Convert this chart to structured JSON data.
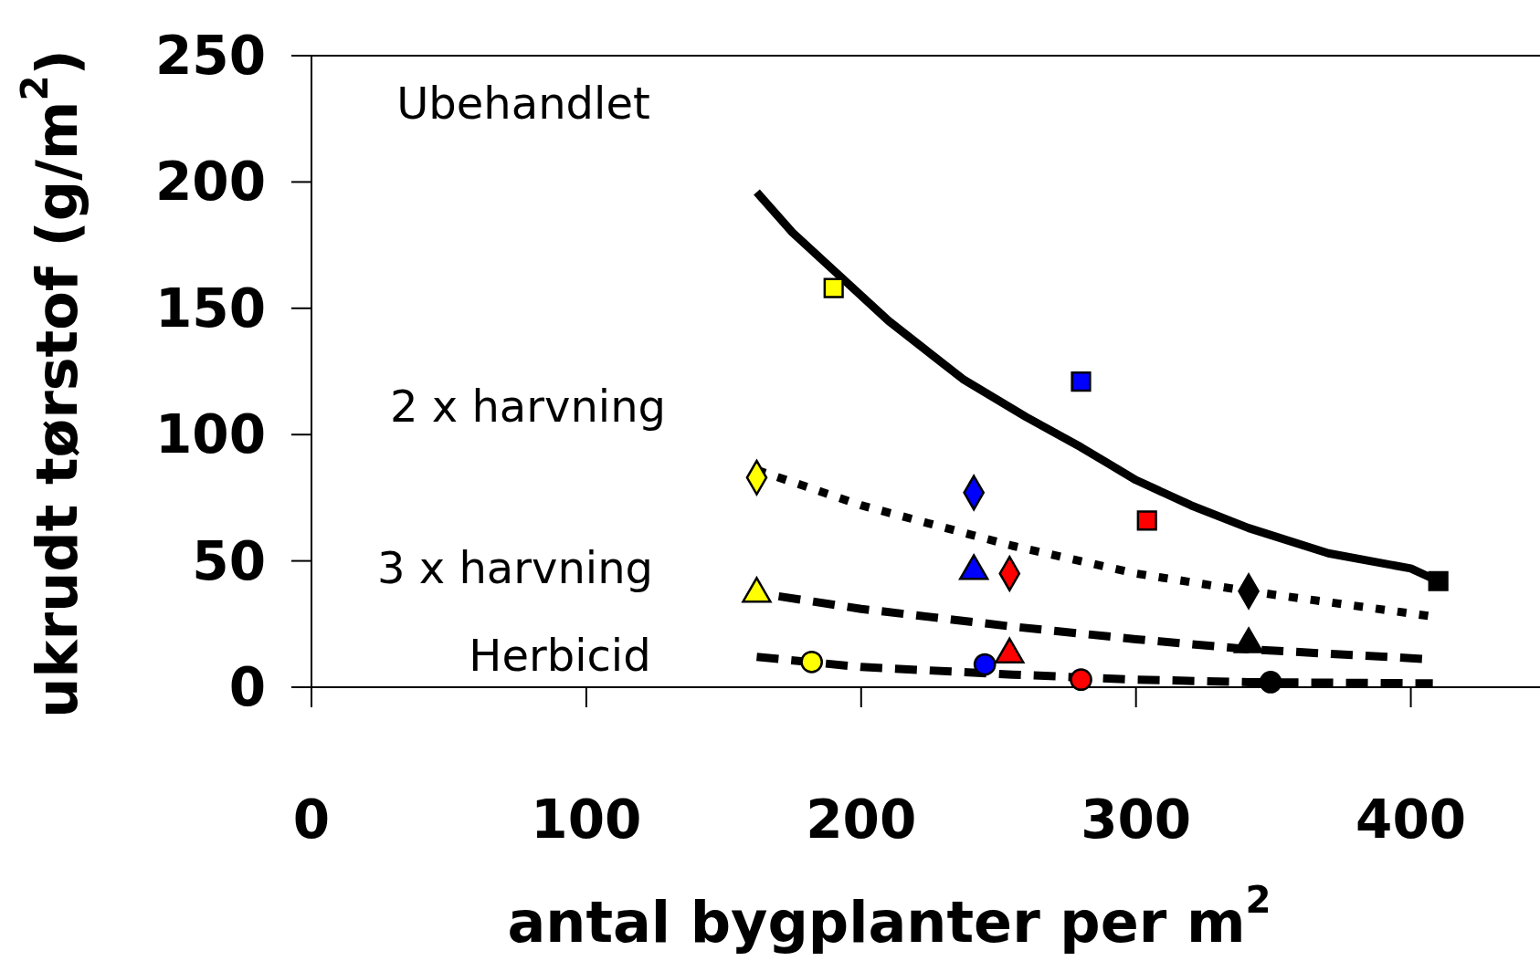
{
  "chart_data": {
    "type": "scatter",
    "xlabel": "antal bygplanter per m$^{2}$",
    "ylabel": "ukrudt tørstof (g/m$^{2}$)",
    "xlim": [
      0,
      447
    ],
    "ylim": [
      0,
      250
    ],
    "xticks": [
      0,
      100,
      200,
      300,
      400
    ],
    "yticks": [
      0,
      50,
      100,
      150,
      200,
      250
    ],
    "grid": false,
    "series": [
      {
        "type": "line",
        "color": "#000000",
        "line_style": "solid",
        "x": [
          162,
          175,
          190,
          210,
          237,
          260,
          280,
          300,
          320,
          341,
          370,
          400,
          410
        ],
        "values": [
          196,
          180,
          165,
          145,
          122,
          107,
          95,
          82,
          72,
          63,
          53,
          47,
          42
        ]
      },
      {
        "type": "line",
        "color": "#000000",
        "line_style": "dotted",
        "x": [
          162,
          200,
          255,
          300,
          341,
          408
        ],
        "values": [
          86,
          72,
          56,
          45,
          38,
          28
        ]
      },
      {
        "type": "line",
        "color": "#000000",
        "line_style": "dashed",
        "x": [
          170,
          200,
          255,
          300,
          341,
          408
        ],
        "values": [
          36,
          31,
          24,
          19,
          15,
          11
        ]
      },
      {
        "type": "line",
        "color": "#000000",
        "line_style": "dashed",
        "x": [
          162,
          200,
          255,
          300,
          341,
          408
        ],
        "values": [
          12,
          8,
          5,
          3,
          2,
          1.5
        ]
      },
      {
        "marker": "square",
        "x": [
          190,
          280,
          304,
          410
        ],
        "values": [
          158,
          121,
          66,
          42
        ],
        "colors": [
          "#ffff00",
          "#0000ff",
          "#ff0000",
          "#000000"
        ]
      },
      {
        "marker": "diamond",
        "x": [
          162,
          241,
          254,
          341
        ],
        "values": [
          83,
          77,
          45,
          38
        ],
        "colors": [
          "#ffff00",
          "#0000ff",
          "#ff0000",
          "#000000"
        ]
      },
      {
        "marker": "triangle",
        "x": [
          162,
          241,
          254,
          341
        ],
        "values": [
          37,
          46,
          13,
          17
        ],
        "colors": [
          "#ffff00",
          "#0000ff",
          "#ff0000",
          "#000000"
        ]
      },
      {
        "marker": "circle",
        "x": [
          182,
          245,
          280,
          349
        ],
        "values": [
          10,
          9,
          3,
          2
        ],
        "colors": [
          "#ffff00",
          "#0000ff",
          "#ff0000",
          "#000000"
        ]
      }
    ],
    "annotations": [
      "Ubehandlet",
      "2 x harvning",
      "3 x harvning",
      "Herbicid"
    ]
  }
}
